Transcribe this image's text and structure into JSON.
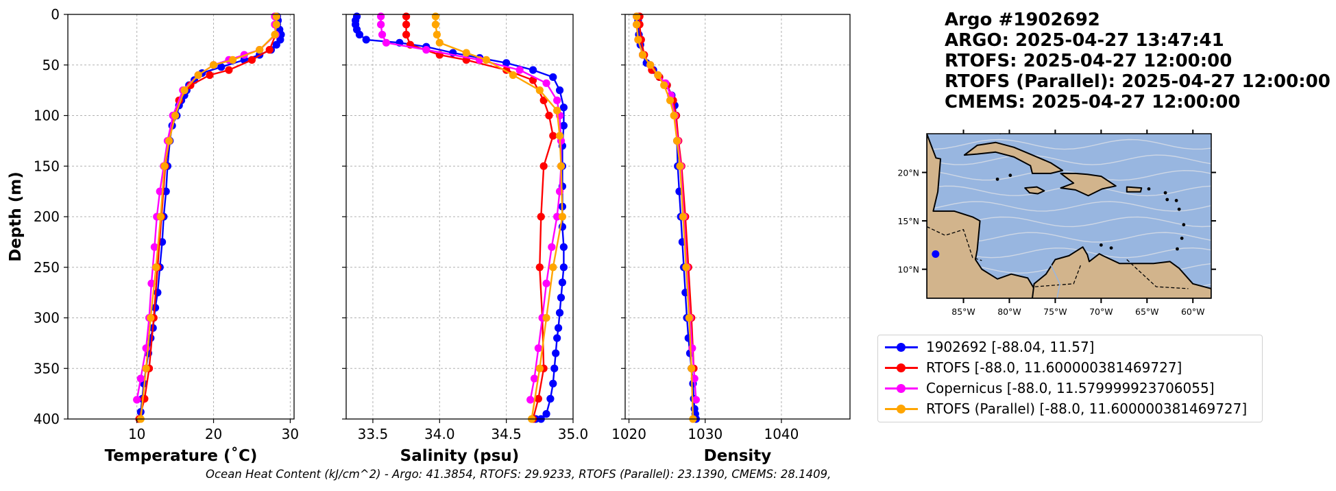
{
  "header": {
    "line1": "Argo #1902692",
    "line2": "ARGO:  2025-04-27 13:47:41",
    "line3": "RTOFS: 2025-04-27 12:00:00",
    "line4": "RTOFS (Parallel): 2025-04-27 12:00:00",
    "line5": "CMEMS: 2025-04-27 12:00:00"
  },
  "footer": "Ocean Heat Content (kJ/cm^2) - Argo: 41.3854,  RTOFS: 29.9233,  RTOFS (Parallel): 23.1390,  CMEMS: 28.1409,",
  "colors": {
    "argo": "#0000ff",
    "rtofs": "#ff0000",
    "copernicus": "#ff00ff",
    "parallel": "#ffa500"
  },
  "legend": [
    {
      "label": "1902692 [-88.04, 11.57]",
      "color": "#0000ff"
    },
    {
      "label": "RTOFS [-88.0, 11.600000381469727]",
      "color": "#ff0000"
    },
    {
      "label": "Copernicus [-88.0, 11.579999923706055]",
      "color": "#ff00ff"
    },
    {
      "label": "RTOFS (Parallel) [-88.0, 11.600000381469727]",
      "color": "#ffa500"
    }
  ],
  "chart_data": [
    {
      "type": "line",
      "xlabel": "Temperature (˚C)",
      "ylabel": "Depth (m)",
      "xlim": [
        1,
        30.5
      ],
      "ylim": [
        400,
        0
      ],
      "xticks": [
        10,
        20,
        30
      ],
      "yticks": [
        0,
        50,
        100,
        150,
        200,
        250,
        300,
        350,
        400
      ],
      "grid": true,
      "series": [
        {
          "name": "1902692 [-88.04, 11.57]",
          "color": "#0000ff",
          "x": [
            28.3,
            28.4,
            28.3,
            28.6,
            28.8,
            28.7,
            28.2,
            27.5,
            26.0,
            24.0,
            21.0,
            18.5,
            17.5,
            16.8,
            16.5,
            16.2,
            15.8,
            15.5,
            15.2,
            14.6,
            14.3,
            14.0,
            13.8,
            13.5,
            13.3,
            13.0,
            12.7,
            12.4,
            12.1,
            11.8,
            11.5,
            11.2,
            10.9,
            10.7,
            10.5
          ],
          "y": [
            2,
            6,
            10,
            15,
            20,
            25,
            30,
            35,
            40,
            45,
            52,
            58,
            65,
            70,
            75,
            80,
            85,
            90,
            100,
            110,
            125,
            150,
            175,
            200,
            225,
            250,
            275,
            290,
            310,
            320,
            335,
            350,
            365,
            380,
            393
          ]
        },
        {
          "name": "RTOFS [-88.0, 11.600000381469727]",
          "color": "#ff0000",
          "x": [
            28.0,
            28.0,
            28.1,
            27.3,
            25.0,
            22.0,
            19.5,
            17.0,
            15.5,
            14.8,
            14.2,
            13.7,
            13.2,
            12.7,
            12.2,
            11.6,
            11.0,
            10.3
          ],
          "y": [
            2,
            10,
            20,
            35,
            45,
            55,
            60,
            70,
            85,
            100,
            125,
            150,
            200,
            250,
            300,
            350,
            380,
            400
          ]
        },
        {
          "name": "Copernicus [-88.0, 11.579999923706055]",
          "color": "#ff00ff",
          "x": [
            28.0,
            28.0,
            28.1,
            26.0,
            24.0,
            22.0,
            20.0,
            18.0,
            16.0,
            14.7,
            14.0,
            13.5,
            13.0,
            12.6,
            12.3,
            11.9,
            11.6,
            11.2,
            10.5,
            10.0
          ],
          "y": [
            2,
            10,
            20,
            35,
            40,
            45,
            50,
            60,
            75,
            100,
            125,
            150,
            175,
            200,
            230,
            266,
            300,
            330,
            360,
            381
          ]
        },
        {
          "name": "RTOFS (Parallel) [-88.0, 11.600000381469727]",
          "color": "#ffa500",
          "x": [
            28.2,
            28.2,
            28.0,
            26.0,
            22.5,
            20.0,
            18.0,
            16.2,
            15.0,
            14.2,
            13.6,
            13.1,
            12.5,
            11.8,
            11.2,
            10.5
          ],
          "y": [
            2,
            10,
            20,
            35,
            45,
            50,
            60,
            75,
            100,
            125,
            150,
            200,
            250,
            300,
            350,
            400
          ]
        }
      ]
    },
    {
      "type": "line",
      "xlabel": "Salinity (psu)",
      "ylabel": "",
      "xlim": [
        33.3,
        35.0
      ],
      "ylim": [
        400,
        0
      ],
      "xticks": [
        33.5,
        34.0,
        34.5,
        35.0
      ],
      "grid": true,
      "series": [
        {
          "name": "1902692 [-88.04, 11.57]",
          "color": "#0000ff",
          "x": [
            33.38,
            33.37,
            33.37,
            33.38,
            33.4,
            33.45,
            33.7,
            33.9,
            34.1,
            34.3,
            34.5,
            34.7,
            34.85,
            34.9,
            34.93,
            34.93,
            34.92,
            34.92,
            34.92,
            34.92,
            34.92,
            34.93,
            34.93,
            34.92,
            34.91,
            34.9,
            34.89,
            34.88,
            34.87,
            34.86,
            34.85,
            34.83,
            34.8,
            34.76,
            34.72
          ],
          "y": [
            2,
            6,
            10,
            15,
            20,
            25,
            28,
            32,
            38,
            43,
            48,
            55,
            62,
            75,
            92,
            110,
            130,
            150,
            170,
            190,
            210,
            230,
            250,
            265,
            280,
            295,
            310,
            320,
            335,
            350,
            365,
            380,
            395,
            400,
            400
          ]
        },
        {
          "name": "RTOFS [-88.0, 11.600000381469727]",
          "color": "#ff0000",
          "x": [
            33.75,
            33.75,
            33.75,
            33.78,
            34.0,
            34.2,
            34.5,
            34.7,
            34.78,
            34.82,
            34.85,
            34.78,
            34.76,
            34.75,
            34.77,
            34.78,
            34.74,
            34.7
          ],
          "y": [
            2,
            10,
            20,
            30,
            40,
            45,
            55,
            65,
            85,
            100,
            120,
            150,
            200,
            250,
            300,
            350,
            380,
            400
          ]
        },
        {
          "name": "Copernicus [-88.0, 11.579999923706055]",
          "color": "#ff00ff",
          "x": [
            33.56,
            33.56,
            33.57,
            33.6,
            33.9,
            34.3,
            34.6,
            34.8,
            34.88,
            34.9,
            34.91,
            34.91,
            34.9,
            34.88,
            34.84,
            34.8,
            34.77,
            34.74,
            34.71,
            34.68
          ],
          "y": [
            2,
            10,
            20,
            28,
            35,
            45,
            55,
            68,
            85,
            100,
            125,
            150,
            175,
            200,
            230,
            266,
            300,
            330,
            360,
            381
          ]
        },
        {
          "name": "RTOFS (Parallel) [-88.0, 11.600000381469727]",
          "color": "#ffa500",
          "x": [
            33.97,
            33.97,
            33.98,
            34.0,
            34.2,
            34.35,
            34.55,
            34.75,
            34.88,
            34.9,
            34.91,
            34.92,
            34.85,
            34.8,
            34.75,
            34.69
          ],
          "y": [
            2,
            10,
            20,
            28,
            38,
            45,
            60,
            75,
            95,
            120,
            150,
            200,
            250,
            300,
            350,
            400
          ]
        }
      ]
    },
    {
      "type": "line",
      "xlabel": "Density",
      "ylabel": "",
      "xlim": [
        1019.5,
        1049
      ],
      "ylim": [
        400,
        0
      ],
      "xticks": [
        1020,
        1030,
        1040
      ],
      "grid": true,
      "series": [
        {
          "name": "1902692 [-88.04, 11.57]",
          "color": "#0000ff",
          "x": [
            1021.2,
            1021.2,
            1021.2,
            1021.3,
            1021.5,
            1021.8,
            1022.3,
            1023.2,
            1024.0,
            1025.0,
            1025.6,
            1026.0,
            1026.2,
            1026.3,
            1026.4,
            1026.6,
            1026.8,
            1027.0,
            1027.2,
            1027.4,
            1027.6,
            1027.8,
            1028.0,
            1028.2,
            1028.4,
            1028.5,
            1028.6,
            1028.7,
            1028.8
          ],
          "y": [
            2,
            6,
            10,
            20,
            30,
            40,
            48,
            55,
            62,
            70,
            80,
            90,
            100,
            125,
            150,
            175,
            200,
            225,
            250,
            275,
            300,
            320,
            335,
            350,
            365,
            380,
            390,
            395,
            400
          ]
        },
        {
          "name": "RTOFS [-88.0, 11.600000381469727]",
          "color": "#ff0000",
          "x": [
            1021.4,
            1021.4,
            1021.6,
            1022.0,
            1023.0,
            1024.0,
            1025.0,
            1025.8,
            1026.2,
            1026.5,
            1026.9,
            1027.4,
            1027.8,
            1028.2,
            1028.5
          ],
          "y": [
            2,
            10,
            25,
            40,
            55,
            62,
            70,
            85,
            100,
            125,
            150,
            200,
            250,
            300,
            350
          ]
        },
        {
          "name": "Copernicus [-88.0, 11.579999923706055]",
          "color": "#ff00ff",
          "x": [
            1021.0,
            1021.0,
            1021.2,
            1021.8,
            1022.8,
            1023.8,
            1024.8,
            1025.5,
            1026.0,
            1026.4,
            1026.8,
            1027.2,
            1027.6,
            1028.0,
            1028.3,
            1028.6,
            1028.8
          ],
          "y": [
            2,
            10,
            25,
            40,
            50,
            60,
            68,
            80,
            100,
            125,
            150,
            200,
            250,
            300,
            330,
            360,
            381
          ]
        },
        {
          "name": "RTOFS (Parallel) [-88.0, 11.600000381469727]",
          "color": "#ffa500",
          "x": [
            1021.0,
            1021.0,
            1021.2,
            1021.8,
            1022.8,
            1023.8,
            1024.6,
            1025.4,
            1025.9,
            1026.3,
            1026.7,
            1027.1,
            1027.5,
            1027.9,
            1028.2,
            1028.4
          ],
          "y": [
            2,
            10,
            25,
            40,
            50,
            60,
            70,
            85,
            100,
            125,
            150,
            200,
            250,
            300,
            350,
            400
          ]
        }
      ]
    }
  ],
  "map": {
    "lon_ticks": [
      "85°W",
      "80°W",
      "75°W",
      "70°W",
      "65°W",
      "60°W"
    ],
    "lat_ticks": [
      "20°N",
      "15°N",
      "10°N"
    ],
    "lon_range": [
      -89,
      -58
    ],
    "lat_range": [
      7,
      24
    ],
    "ocean_color": "#98b6e0",
    "land_color": "#d2b48c",
    "marker": {
      "lon": -88.04,
      "lat": 11.57,
      "color": "#0000ff"
    }
  }
}
